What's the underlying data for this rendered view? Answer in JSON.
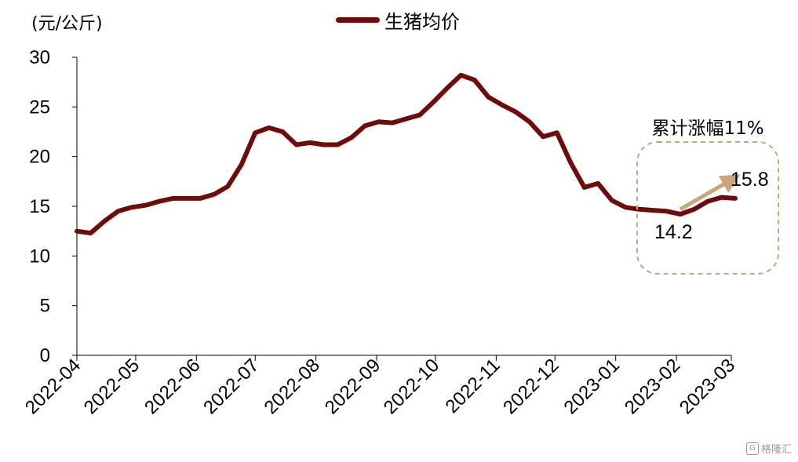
{
  "unit_label": "(元/公斤)",
  "chart_data": {
    "type": "line",
    "title": "",
    "xlabel": "",
    "ylabel": "(元/公斤)",
    "ylim": [
      0,
      30
    ],
    "yticks": [
      0,
      5,
      10,
      15,
      20,
      25,
      30
    ],
    "x_ticks": [
      "2022-04",
      "2022-05",
      "2022-06",
      "2022-07",
      "2022-08",
      "2022-09",
      "2022-10",
      "2022-11",
      "2022-12",
      "2023-01",
      "2023-02",
      "2023-03"
    ],
    "legend_position": "top-center",
    "series": [
      {
        "name": "生猪均价",
        "color": "#6e0b0b",
        "points": [
          [
            "2022-04-01",
            12.5
          ],
          [
            "2022-04-08",
            12.3
          ],
          [
            "2022-04-15",
            13.5
          ],
          [
            "2022-04-22",
            14.5
          ],
          [
            "2022-04-29",
            14.9
          ],
          [
            "2022-05-06",
            15.1
          ],
          [
            "2022-05-13",
            15.5
          ],
          [
            "2022-05-20",
            15.8
          ],
          [
            "2022-05-27",
            15.8
          ],
          [
            "2022-06-03",
            15.8
          ],
          [
            "2022-06-10",
            16.2
          ],
          [
            "2022-06-17",
            17.0
          ],
          [
            "2022-06-24",
            19.2
          ],
          [
            "2022-07-01",
            22.4
          ],
          [
            "2022-07-08",
            22.9
          ],
          [
            "2022-07-15",
            22.5
          ],
          [
            "2022-07-22",
            21.2
          ],
          [
            "2022-07-29",
            21.4
          ],
          [
            "2022-08-05",
            21.2
          ],
          [
            "2022-08-12",
            21.2
          ],
          [
            "2022-08-19",
            21.9
          ],
          [
            "2022-08-26",
            23.1
          ],
          [
            "2022-09-02",
            23.5
          ],
          [
            "2022-09-09",
            23.4
          ],
          [
            "2022-09-16",
            23.8
          ],
          [
            "2022-09-23",
            24.2
          ],
          [
            "2022-09-30",
            25.5
          ],
          [
            "2022-10-07",
            26.9
          ],
          [
            "2022-10-14",
            28.2
          ],
          [
            "2022-10-21",
            27.7
          ],
          [
            "2022-10-28",
            26.0
          ],
          [
            "2022-11-04",
            25.2
          ],
          [
            "2022-11-11",
            24.5
          ],
          [
            "2022-11-18",
            23.5
          ],
          [
            "2022-11-25",
            22.0
          ],
          [
            "2022-12-02",
            22.4
          ],
          [
            "2022-12-09",
            19.4
          ],
          [
            "2022-12-16",
            16.9
          ],
          [
            "2022-12-23",
            17.3
          ],
          [
            "2022-12-30",
            15.6
          ],
          [
            "2023-01-06",
            14.9
          ],
          [
            "2023-01-13",
            14.7
          ],
          [
            "2023-01-20",
            14.6
          ],
          [
            "2023-01-27",
            14.5
          ],
          [
            "2023-02-03",
            14.2
          ],
          [
            "2023-02-10",
            14.7
          ],
          [
            "2023-02-17",
            15.5
          ],
          [
            "2023-02-24",
            15.9
          ],
          [
            "2023-03-03",
            15.8
          ]
        ]
      }
    ],
    "annotations": {
      "box_title": "累计涨幅11%",
      "start_value_label": "14.2",
      "end_value_label": "15.8",
      "box_color": "#c9a57c",
      "arrow_color": "#c9a57c",
      "arrow_from": [
        "2023-02-03",
        14.7
      ],
      "arrow_to": [
        "2023-03-03",
        17.8
      ]
    }
  },
  "watermark": "格隆汇"
}
